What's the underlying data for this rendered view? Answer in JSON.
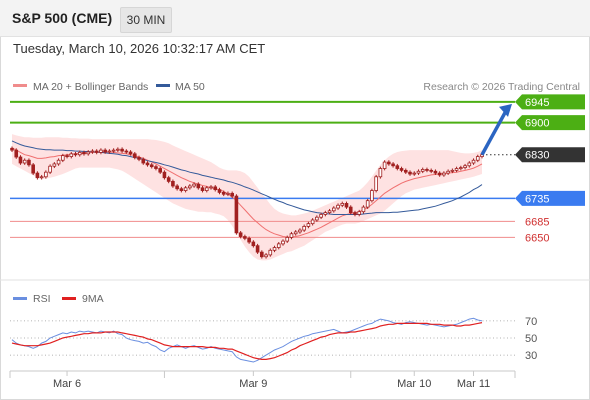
{
  "header": {
    "title": "S&P 500 (CME)",
    "timeframe": "30 MIN"
  },
  "datetime": "Tuesday, March 10, 2026 10:32:17 AM CET",
  "colors": {
    "resistance": "#4caf14",
    "support": "#3a7bf0",
    "lowlines": "#f08c8c",
    "current": "#333333",
    "ma20": "#f07070",
    "ma50": "#345a9a",
    "band": "#fdd8d8",
    "candle": "#a12020",
    "arrow": "#2b65c2",
    "rsi": "#6a8fe0",
    "rsi_ma": "#e02020"
  },
  "chart_data": [
    {
      "type": "candlestick",
      "legend": [
        {
          "name": "MA 20 + Bollinger Bands",
          "color": "#f08c8c"
        },
        {
          "name": "MA 50",
          "color": "#345a9a"
        }
      ],
      "legend_position": "top-left",
      "copyright": "Research © 2026 Trading Central",
      "ylim": [
        6590,
        6960
      ],
      "x_ticks": [
        "Mar 6",
        "Mar 9",
        "Mar 10",
        "Mar 11"
      ],
      "levels": [
        {
          "value": 6945,
          "label": "6945",
          "kind": "resistance"
        },
        {
          "value": 6900,
          "label": "6900",
          "kind": "resistance"
        },
        {
          "value": 6830,
          "label": "6830",
          "kind": "current"
        },
        {
          "value": 6735,
          "label": "6735",
          "kind": "support"
        },
        {
          "value": 6685,
          "label": "6685",
          "kind": "minor"
        },
        {
          "value": 6650,
          "label": "6650",
          "kind": "minor"
        }
      ],
      "close": [
        6840,
        6825,
        6812,
        6818,
        6808,
        6790,
        6780,
        6782,
        6792,
        6805,
        6810,
        6818,
        6828,
        6826,
        6832,
        6830,
        6835,
        6832,
        6836,
        6838,
        6835,
        6840,
        6836,
        6838,
        6840,
        6842,
        6838,
        6836,
        6832,
        6824,
        6820,
        6812,
        6808,
        6804,
        6800,
        6792,
        6780,
        6772,
        6762,
        6756,
        6752,
        6758,
        6762,
        6766,
        6758,
        6752,
        6758,
        6760,
        6754,
        6748,
        6744,
        6746,
        6740,
        6660,
        6652,
        6648,
        6640,
        6632,
        6618,
        6608,
        6612,
        6622,
        6628,
        6636,
        6642,
        6650,
        6658,
        6662,
        6666,
        6674,
        6680,
        6688,
        6694,
        6700,
        6704,
        6708,
        6714,
        6720,
        6724,
        6716,
        6704,
        6700,
        6706,
        6716,
        6730,
        6752,
        6782,
        6800,
        6814,
        6810,
        6806,
        6800,
        6796,
        6792,
        6788,
        6790,
        6794,
        6798,
        6796,
        6794,
        6790,
        6786,
        6790,
        6794,
        6796,
        6800,
        6802,
        6806,
        6812,
        6818,
        6826,
        6830
      ],
      "ma20": [
        6845,
        6840,
        6835,
        6830,
        6828,
        6825,
        6822,
        6822,
        6823,
        6825,
        6826,
        6828,
        6829,
        6830,
        6831,
        6832,
        6833,
        6833,
        6834,
        6835,
        6835,
        6836,
        6836,
        6836,
        6835,
        6834,
        6833,
        6832,
        6830,
        6828,
        6825,
        6822,
        6818,
        6814,
        6810,
        6805,
        6800,
        6795,
        6790,
        6785,
        6780,
        6776,
        6772,
        6769,
        6766,
        6763,
        6761,
        6758,
        6756,
        6754,
        6750,
        6745,
        6738,
        6730,
        6720,
        6710,
        6700,
        6690,
        6682,
        6674,
        6667,
        6662,
        6658,
        6655,
        6652,
        6651,
        6651,
        6652,
        6654,
        6657,
        6660,
        6664,
        6668,
        6672,
        6677,
        6682,
        6687,
        6692,
        6697,
        6700,
        6702,
        6704,
        6706,
        6710,
        6715,
        6722,
        6730,
        6738,
        6746,
        6752,
        6758,
        6763,
        6768,
        6772,
        6775,
        6778,
        6780,
        6782,
        6784,
        6786,
        6787,
        6788,
        6789,
        6790,
        6791,
        6792,
        6794,
        6796,
        6798,
        6801,
        6805,
        6810
      ],
      "bb_upper": [
        6875,
        6872,
        6870,
        6868,
        6868,
        6867,
        6867,
        6867,
        6868,
        6868,
        6868,
        6868,
        6867,
        6867,
        6866,
        6866,
        6865,
        6865,
        6865,
        6864,
        6864,
        6864,
        6864,
        6864,
        6864,
        6864,
        6864,
        6864,
        6864,
        6864,
        6864,
        6864,
        6864,
        6863,
        6862,
        6860,
        6858,
        6855,
        6850,
        6846,
        6842,
        6838,
        6834,
        6830,
        6826,
        6822,
        6818,
        6814,
        6808,
        6802,
        6798,
        6796,
        6796,
        6796,
        6794,
        6790,
        6782,
        6770,
        6758,
        6745,
        6734,
        6722,
        6712,
        6706,
        6702,
        6700,
        6698,
        6698,
        6700,
        6702,
        6705,
        6708,
        6712,
        6716,
        6720,
        6724,
        6728,
        6732,
        6736,
        6740,
        6744,
        6748,
        6752,
        6760,
        6770,
        6782,
        6795,
        6808,
        6818,
        6826,
        6832,
        6836,
        6838,
        6839,
        6840,
        6840,
        6840,
        6840,
        6840,
        6840,
        6840,
        6840,
        6840,
        6840,
        6838,
        6836,
        6834,
        6833,
        6833,
        6834,
        6836,
        6840
      ],
      "bb_lower": [
        6810,
        6805,
        6800,
        6795,
        6790,
        6785,
        6780,
        6778,
        6778,
        6780,
        6782,
        6785,
        6788,
        6792,
        6796,
        6800,
        6802,
        6802,
        6802,
        6802,
        6802,
        6802,
        6802,
        6802,
        6800,
        6798,
        6795,
        6790,
        6784,
        6778,
        6772,
        6766,
        6760,
        6754,
        6748,
        6742,
        6736,
        6730,
        6724,
        6720,
        6716,
        6712,
        6710,
        6708,
        6706,
        6706,
        6705,
        6705,
        6702,
        6700,
        6696,
        6688,
        6675,
        6660,
        6645,
        6630,
        6618,
        6608,
        6602,
        6600,
        6600,
        6602,
        6606,
        6610,
        6614,
        6618,
        6620,
        6624,
        6628,
        6632,
        6638,
        6644,
        6650,
        6656,
        6662,
        6666,
        6670,
        6674,
        6678,
        6680,
        6680,
        6680,
        6682,
        6686,
        6690,
        6694,
        6698,
        6702,
        6708,
        6716,
        6724,
        6732,
        6740,
        6746,
        6750,
        6754,
        6756,
        6758,
        6760,
        6762,
        6764,
        6766,
        6768,
        6770,
        6772,
        6774,
        6776,
        6778,
        6780,
        6782,
        6785,
        6788
      ],
      "ma50": [
        6860,
        6856,
        6852,
        6849,
        6847,
        6845,
        6843,
        6842,
        6841,
        6841,
        6840,
        6840,
        6840,
        6839,
        6839,
        6838,
        6838,
        6837,
        6837,
        6836,
        6836,
        6835,
        6834,
        6833,
        6832,
        6831,
        6829,
        6828,
        6826,
        6824,
        6822,
        6820,
        6817,
        6815,
        6813,
        6811,
        6808,
        6806,
        6803,
        6800,
        6797,
        6795,
        6792,
        6790,
        6788,
        6785,
        6783,
        6781,
        6779,
        6777,
        6775,
        6772,
        6770,
        6767,
        6764,
        6760,
        6757,
        6753,
        6749,
        6745,
        6741,
        6737,
        6733,
        6729,
        6726,
        6722,
        6719,
        6716,
        6713,
        6710,
        6708,
        6706,
        6704,
        6703,
        6702,
        6701,
        6700,
        6700,
        6700,
        6700,
        6700,
        6700,
        6700,
        6701,
        6702,
        6703,
        6704,
        6704,
        6704,
        6704,
        6705,
        6705,
        6706,
        6707,
        6708,
        6709,
        6710,
        6712,
        6714,
        6716,
        6718,
        6721,
        6724,
        6727,
        6730,
        6734,
        6738,
        6743,
        6748,
        6754,
        6759,
        6765
      ],
      "forecast_arrow": {
        "from": 6830,
        "to": 6945
      }
    },
    {
      "type": "line",
      "legend": [
        {
          "name": "RSI",
          "color": "#6a8fe0"
        },
        {
          "name": "9MA",
          "color": "#e02020"
        }
      ],
      "ylim": [
        15,
        85
      ],
      "y_ticks": [
        {
          "value": 70,
          "label": "70"
        },
        {
          "value": 50,
          "label": "50"
        },
        {
          "value": 30,
          "label": "30"
        }
      ],
      "series": [
        {
          "name": "RSI",
          "values": [
            48,
            44,
            42,
            41,
            40,
            38,
            40,
            44,
            46,
            50,
            52,
            54,
            56,
            55,
            57,
            56,
            58,
            57,
            58,
            57,
            56,
            58,
            57,
            56,
            58,
            55,
            54,
            50,
            48,
            47,
            46,
            44,
            45,
            42,
            40,
            36,
            34,
            38,
            40,
            42,
            40,
            38,
            40,
            41,
            39,
            37,
            38,
            40,
            38,
            37,
            36,
            35,
            34,
            28,
            25,
            24,
            23,
            22,
            24,
            27,
            30,
            33,
            36,
            38,
            40,
            43,
            46,
            48,
            50,
            52,
            53,
            55,
            56,
            57,
            58,
            59,
            60,
            58,
            56,
            57,
            58,
            60,
            62,
            64,
            66,
            67,
            70,
            72,
            71,
            70,
            68,
            67,
            66,
            68,
            69,
            68,
            67,
            66,
            65,
            66,
            65,
            64,
            63,
            64,
            65,
            66,
            68,
            70,
            72,
            73,
            71,
            70
          ]
        },
        {
          "name": "9MA",
          "values": [
            44,
            43,
            42,
            41,
            41,
            41,
            41,
            42,
            43,
            44,
            46,
            48,
            50,
            51,
            52,
            53,
            54,
            55,
            55,
            56,
            56,
            56,
            57,
            57,
            57,
            57,
            56,
            55,
            54,
            53,
            52,
            51,
            49,
            48,
            46,
            44,
            42,
            41,
            40,
            40,
            40,
            40,
            40,
            40,
            40,
            40,
            39,
            39,
            39,
            38,
            38,
            37,
            37,
            35,
            33,
            31,
            29,
            27,
            26,
            25,
            25,
            26,
            27,
            29,
            31,
            33,
            36,
            38,
            41,
            43,
            45,
            47,
            49,
            51,
            52,
            54,
            55,
            56,
            56,
            56,
            57,
            57,
            58,
            59,
            60,
            61,
            62,
            64,
            65,
            66,
            66,
            67,
            67,
            67,
            67,
            67,
            67,
            67,
            67,
            66,
            66,
            66,
            65,
            65,
            65,
            64,
            64,
            65,
            65,
            66,
            67,
            68
          ]
        }
      ]
    }
  ]
}
